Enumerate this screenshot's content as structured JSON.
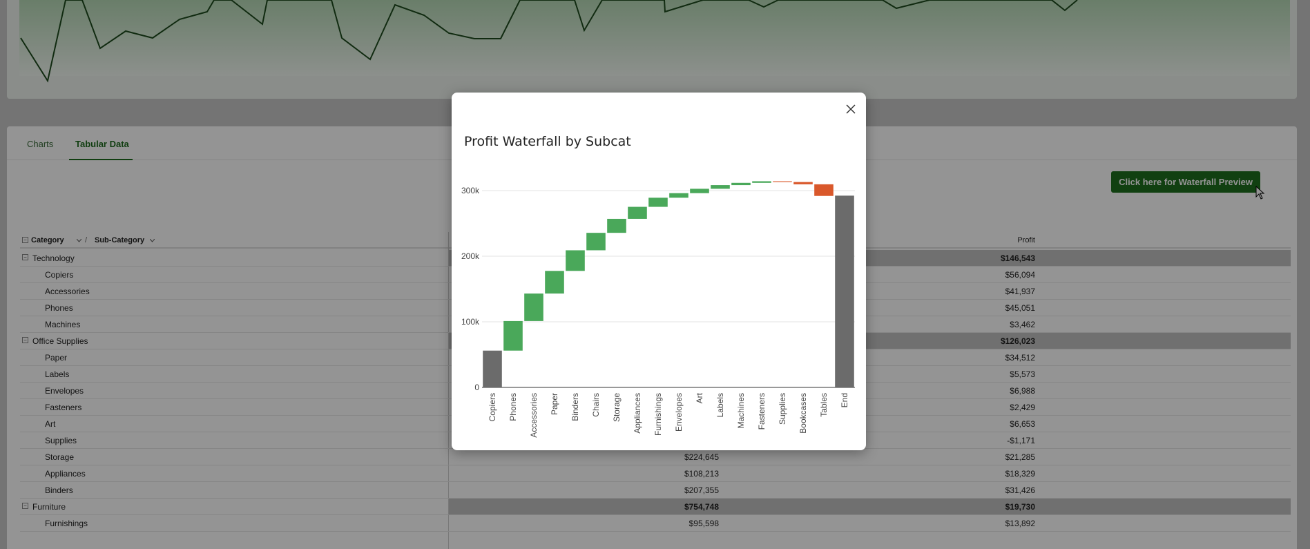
{
  "tabs": [
    {
      "label": "Charts",
      "active": false
    },
    {
      "label": "Tabular Data",
      "active": true
    }
  ],
  "waterfall_button": {
    "label": "Click here for Waterfall Preview"
  },
  "table": {
    "header": {
      "category": "Category",
      "separator": "/",
      "sub_category": "Sub-Category",
      "profit": "Profit"
    },
    "rows": [
      {
        "type": "group",
        "name": "Technology",
        "sales": "",
        "profit": "$146,543"
      },
      {
        "type": "sub",
        "name": "Copiers",
        "sales": "",
        "profit": "$56,094"
      },
      {
        "type": "sub",
        "name": "Accessories",
        "sales": "",
        "profit": "$41,937"
      },
      {
        "type": "sub",
        "name": "Phones",
        "sales": "",
        "profit": "$45,051"
      },
      {
        "type": "sub",
        "name": "Machines",
        "sales": "",
        "profit": "$3,462"
      },
      {
        "type": "group",
        "name": "Office Supplies",
        "sales": "",
        "profit": "$126,023"
      },
      {
        "type": "sub",
        "name": "Paper",
        "sales": "",
        "profit": "$34,512"
      },
      {
        "type": "sub",
        "name": "Labels",
        "sales": "",
        "profit": "$5,573"
      },
      {
        "type": "sub",
        "name": "Envelopes",
        "sales": "",
        "profit": "$6,988"
      },
      {
        "type": "sub",
        "name": "Fasteners",
        "sales": "",
        "profit": "$2,429"
      },
      {
        "type": "sub",
        "name": "Art",
        "sales": "",
        "profit": "$6,653"
      },
      {
        "type": "sub",
        "name": "Supplies",
        "sales": "",
        "profit": "-$1,171"
      },
      {
        "type": "sub",
        "name": "Storage",
        "sales": "$224,645",
        "profit": "$21,285"
      },
      {
        "type": "sub",
        "name": "Appliances",
        "sales": "$108,213",
        "profit": "$18,329"
      },
      {
        "type": "sub",
        "name": "Binders",
        "sales": "$207,355",
        "profit": "$31,426"
      },
      {
        "type": "group",
        "name": "Furniture",
        "sales": "$754,748",
        "profit": "$19,730"
      },
      {
        "type": "sub",
        "name": "Furnishings",
        "sales": "$95,598",
        "profit": "$13,892"
      }
    ]
  },
  "modal": {
    "title": "Profit Waterfall by Subcat",
    "close_icon": "close-icon"
  },
  "colors": {
    "increase": "#4aa85a",
    "decrease": "#d9582b",
    "total": "#6b6b6b",
    "accent": "#1e6e1e"
  },
  "chart_data": {
    "type": "bar",
    "subtype": "waterfall",
    "title": "Profit Waterfall by Subcat",
    "categories": [
      "Copiers",
      "Phones",
      "Accessories",
      "Paper",
      "Binders",
      "Chairs",
      "Storage",
      "Appliances",
      "Furnishings",
      "Envelopes",
      "Art",
      "Labels",
      "Machines",
      "Fasteners",
      "Supplies",
      "Bookcases",
      "Tables",
      "End"
    ],
    "values": [
      56094,
      45051,
      41937,
      34512,
      31426,
      26602,
      21285,
      18329,
      13892,
      6988,
      6653,
      5573,
      3462,
      2429,
      -1171,
      -3473,
      -17725,
      292297
    ],
    "bar_kind": [
      "total",
      "increase",
      "increase",
      "increase",
      "increase",
      "increase",
      "increase",
      "increase",
      "increase",
      "increase",
      "increase",
      "increase",
      "increase",
      "increase",
      "decrease",
      "decrease",
      "decrease",
      "total"
    ],
    "y_ticks": [
      "0",
      "100k",
      "200k",
      "300k"
    ],
    "y_tick_values": [
      0,
      100000,
      200000,
      300000
    ],
    "ylim": [
      0,
      300000
    ],
    "grid": true,
    "legend": "none"
  }
}
